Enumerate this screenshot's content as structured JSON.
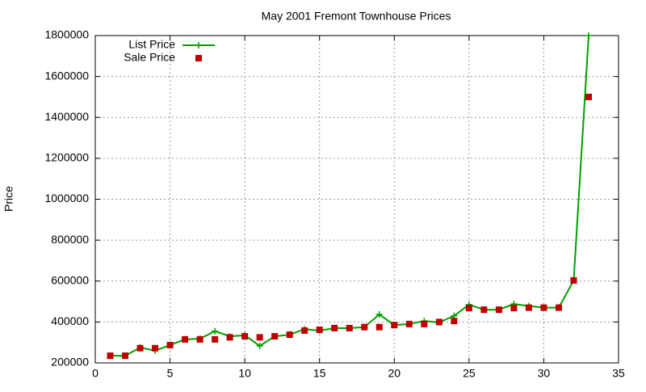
{
  "chart_data": {
    "type": "line",
    "title": "May 2001 Fremont Townhouse Prices",
    "y_label": "Price",
    "x": [
      1,
      2,
      3,
      4,
      5,
      6,
      7,
      8,
      9,
      10,
      11,
      12,
      13,
      14,
      15,
      16,
      17,
      18,
      19,
      20,
      21,
      22,
      23,
      24,
      25,
      26,
      27,
      28,
      29,
      30,
      31,
      32,
      33
    ],
    "series": [
      {
        "name": "List Price",
        "color": "#00a000",
        "style": "linespoints",
        "values": [
          235000,
          235000,
          275000,
          260000,
          287000,
          315000,
          318000,
          355000,
          330000,
          335000,
          283000,
          330000,
          338000,
          365000,
          358000,
          370000,
          370000,
          375000,
          437000,
          385000,
          390000,
          405000,
          398000,
          430000,
          485000,
          460000,
          460000,
          488000,
          478000,
          470000,
          470000,
          603000,
          1800000
        ]
      },
      {
        "name": "Sale Price",
        "color": "#c00000",
        "style": "points",
        "values": [
          235000,
          235000,
          272000,
          272000,
          287000,
          315000,
          315000,
          315000,
          325000,
          330000,
          325000,
          330000,
          338000,
          358000,
          362000,
          370000,
          370000,
          375000,
          375000,
          385000,
          390000,
          390000,
          400000,
          405000,
          468000,
          460000,
          460000,
          468000,
          470000,
          470000,
          470000,
          603000,
          1500000
        ]
      }
    ],
    "xlim": [
      0,
      35
    ],
    "xticks": [
      0,
      5,
      10,
      15,
      20,
      25,
      30,
      35
    ],
    "ylim": [
      200000,
      1800000
    ],
    "yticks": [
      200000,
      400000,
      600000,
      800000,
      1000000,
      1200000,
      1400000,
      1600000,
      1800000
    ],
    "grid": true,
    "legend": "top-left"
  }
}
